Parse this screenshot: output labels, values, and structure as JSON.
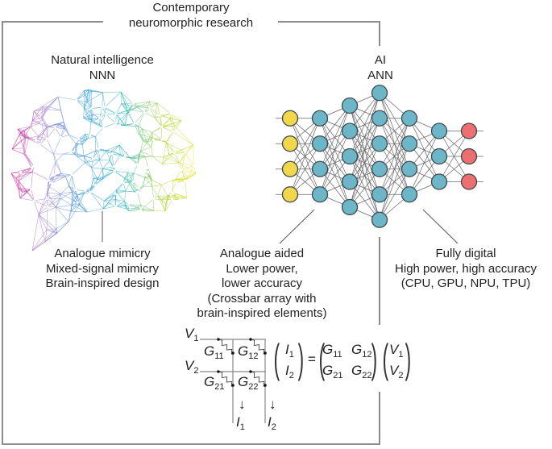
{
  "title": [
    "Contemporary",
    "neuromorphic research"
  ],
  "nnn": {
    "heading": [
      "Natural intelligence",
      "NNN"
    ],
    "labels": [
      "Analogue mimicry",
      "Mixed-signal mimicry",
      "Brain-inspired design"
    ]
  },
  "ann": {
    "heading": [
      "AI",
      "ANN"
    ],
    "layer_sizes": [
      4,
      4,
      5,
      6,
      4,
      3,
      3
    ]
  },
  "analogue": {
    "labels": [
      "Analogue aided",
      "Lower power,",
      "lower accuracy",
      "(Crossbar array with",
      "brain-inspired elements)"
    ]
  },
  "digital": {
    "labels": [
      "Fully digital",
      "High power, high accuracy",
      "(CPU, GPU, NPU, TPU)"
    ]
  },
  "crossbar": {
    "v": [
      "V",
      "V"
    ],
    "v_sub": [
      "1",
      "2"
    ],
    "g": [
      "G",
      "G",
      "G",
      "G"
    ],
    "g_sub": [
      "11",
      "12",
      "21",
      "22"
    ],
    "i": [
      "I",
      "I"
    ],
    "i_sub": [
      "1",
      "2"
    ],
    "equals": "=",
    "arrow": "↓"
  },
  "colors": {
    "input_node": "#f2d64b",
    "hidden_node": "#6cb6c8",
    "output_node": "#ee6f6f",
    "frame": "#8c8c8c",
    "brain_gradient": [
      "#e2379a",
      "#9b8ad8",
      "#3b9fdc",
      "#3cbac8",
      "#a6d23c",
      "#f2e52a"
    ]
  }
}
